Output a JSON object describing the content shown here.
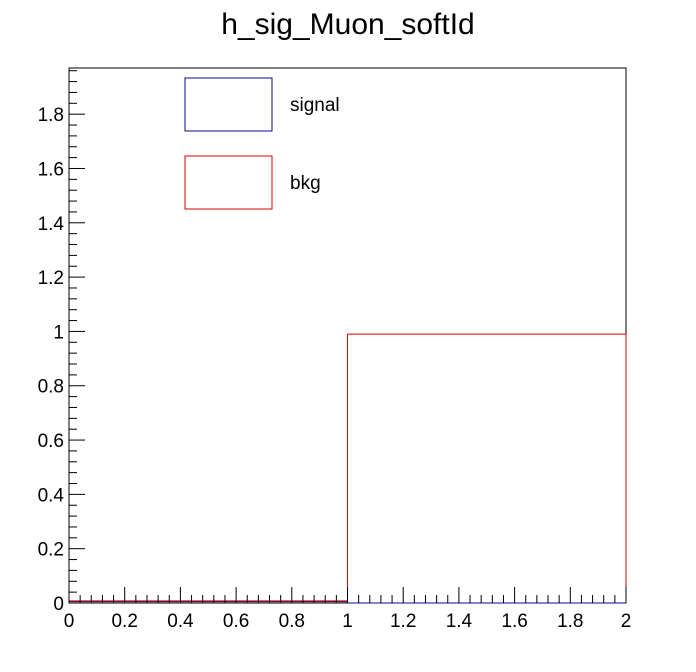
{
  "chart_data": {
    "type": "histogram",
    "title": "h_sig_Muon_softId",
    "xlabel": "",
    "ylabel": "",
    "xlim": [
      0,
      2
    ],
    "ylim": [
      0,
      1.97
    ],
    "grid": false,
    "legend_position": "top-left",
    "x_ticks": [
      "0",
      "0.2",
      "0.4",
      "0.6",
      "0.8",
      "1",
      "1.2",
      "1.4",
      "1.6",
      "1.8",
      "2"
    ],
    "x_tick_values": [
      0,
      0.2,
      0.4,
      0.6,
      0.8,
      1,
      1.2,
      1.4,
      1.6,
      1.8,
      2
    ],
    "y_ticks": [
      "0",
      "0.2",
      "0.4",
      "0.6",
      "0.8",
      "1",
      "1.2",
      "1.4",
      "1.6",
      "1.8"
    ],
    "y_tick_values": [
      0,
      0.2,
      0.4,
      0.6,
      0.8,
      1,
      1.2,
      1.4,
      1.6,
      1.8
    ],
    "bin_edges": [
      0,
      1,
      2
    ],
    "series": [
      {
        "name": "signal",
        "color": "#0a0a8c",
        "values": [
          0.005,
          0.0
        ]
      },
      {
        "name": "bkg",
        "color": "#e00000",
        "values": [
          0.008,
          0.99
        ]
      }
    ]
  }
}
